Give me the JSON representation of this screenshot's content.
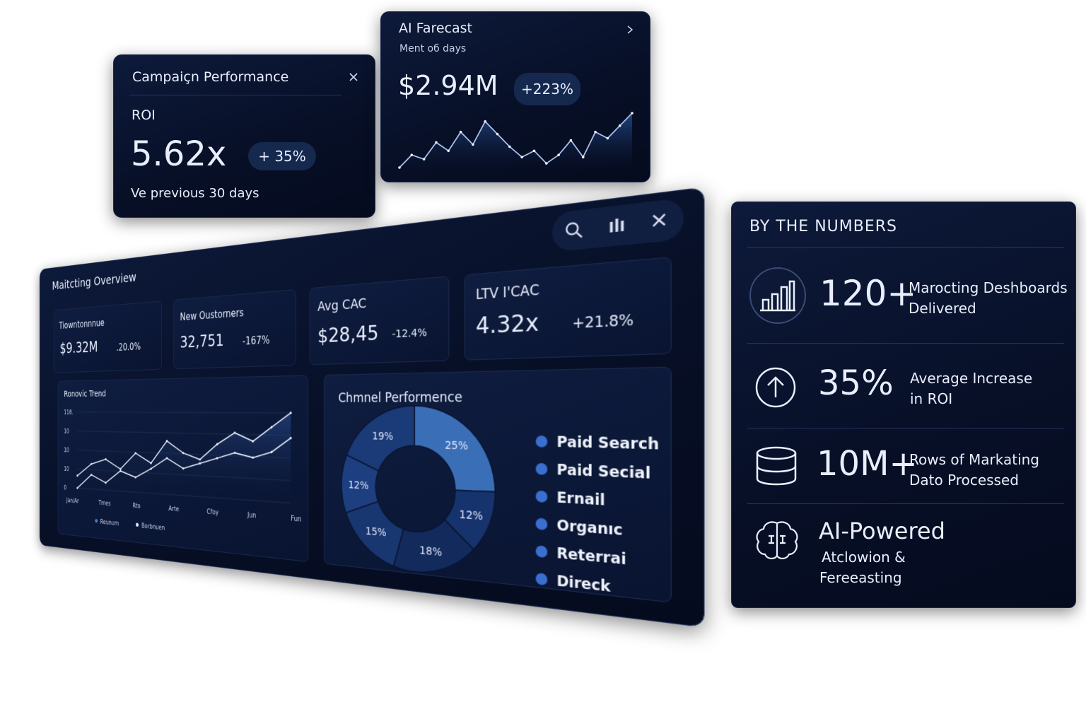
{
  "campaign_card": {
    "title": "Campaiçn Performance",
    "metric_label": "ROI",
    "value": "5.62x",
    "change": "+ 35%",
    "note": "Ve previous 30 days"
  },
  "forecast_card": {
    "title": "AI Farecast",
    "subtitle": "Ment oб days",
    "value": "$2.94M",
    "change": "+223%",
    "trend": [
      10,
      22,
      18,
      34,
      26,
      44,
      32,
      54,
      42,
      30,
      20,
      26,
      14,
      22,
      36,
      20,
      44,
      38,
      50,
      62
    ]
  },
  "overview": {
    "title": "Maitcting Overview",
    "kpis": [
      {
        "label": "Tiowntonnnue",
        "value": "$9.32M",
        "change": ".20.0%"
      },
      {
        "label": "New Oustorners",
        "value": "32,751",
        "change": "-167%"
      },
      {
        "label": "Avg CAC",
        "value": "$28,45",
        "change": "-12.4%"
      },
      {
        "label": "LTV I'CAC",
        "value": "4.32x",
        "change": "+21.8%"
      }
    ],
    "revenue_trend": {
      "title": "Ronovic Trend",
      "y_labels": [
        "118.",
        "10",
        "10",
        "10",
        "0"
      ],
      "x_labels": [
        "Jan/Ar",
        "Tmes",
        "Rto",
        "Arte",
        "Cfoy",
        "Jun",
        "Fun"
      ],
      "legend": [
        "Reunum",
        "Borbnuen"
      ],
      "series": [
        {
          "values": [
            32,
            46,
            52,
            42,
            60,
            50,
            74,
            62,
            56,
            72,
            84,
            76,
            90,
            104
          ]
        },
        {
          "values": [
            18,
            34,
            26,
            40,
            34,
            44,
            56,
            46,
            52,
            58,
            64,
            60,
            66,
            80
          ]
        }
      ]
    },
    "channel_performance": {
      "title": "Chmnel Performence",
      "segments": [
        {
          "value": 25,
          "label": "25%",
          "color": "#3a6fb8"
        },
        {
          "value": 12,
          "label": "12%",
          "color": "#17336e"
        },
        {
          "value": 18,
          "label": "18%",
          "color": "#122a5c"
        },
        {
          "value": 15,
          "label": "15%",
          "color": "#183670"
        },
        {
          "value": 12,
          "label": "12%",
          "color": "#1d3f80"
        },
        {
          "value": 19,
          "label": "19%",
          "color": "#1a3a78"
        }
      ],
      "legend": [
        "Paid Search",
        "Paid Secial",
        "Ernail",
        "Organıc",
        "Reterrai",
        "Direck"
      ]
    }
  },
  "numbers": {
    "title": "BY THE NUMBERS",
    "items": [
      {
        "value": "120+",
        "lines": [
          "Marocting Deshboards",
          "Delivered"
        ]
      },
      {
        "value": "35%",
        "lines": [
          "Average Increase",
          "in ROI"
        ]
      },
      {
        "value": "10M+",
        "lines": [
          "Rows of Markating",
          "Dato Processed"
        ]
      },
      {
        "value": "AI-Powered",
        "lines": [
          "Atclowion &",
          "Fereeasting"
        ]
      }
    ]
  }
}
